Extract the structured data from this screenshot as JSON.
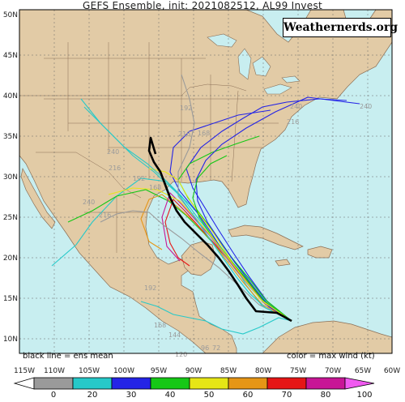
{
  "title": "GEFS Ensemble, init: 2021082512, AL99 Invest",
  "watermark": "Weathernerds.org",
  "notes": {
    "left": "black line = ens mean",
    "right": "color = max wind (kt)"
  },
  "lat_labels": [
    "50N",
    "45N",
    "40N",
    "35N",
    "30N",
    "25N",
    "20N",
    "15N",
    "10N"
  ],
  "lon_labels": [
    "115W",
    "110W",
    "105W",
    "100W",
    "95W",
    "90W",
    "85W",
    "80W",
    "75W",
    "70W",
    "65W",
    "60W"
  ],
  "hour_labels": [
    "240",
    "240",
    "216",
    "192",
    "168",
    "216",
    "240",
    "216",
    "192",
    "168",
    "240",
    "216",
    "192",
    "168",
    "144",
    "120",
    "96",
    "72"
  ],
  "colorbar": {
    "ticks": [
      "0",
      "20",
      "30",
      "40",
      "50",
      "60",
      "70",
      "80",
      "100"
    ],
    "colors": [
      "#ffffff",
      "#9a9a9a",
      "#26c9c9",
      "#2424e6",
      "#16c816",
      "#e6e616",
      "#e69616",
      "#e61616",
      "#c81696",
      "#f05af0"
    ]
  },
  "colors": {
    "ocean": "#c8eef0",
    "land": "#e2cba6",
    "border": "#8a6e55",
    "mean_track": "#000000"
  }
}
